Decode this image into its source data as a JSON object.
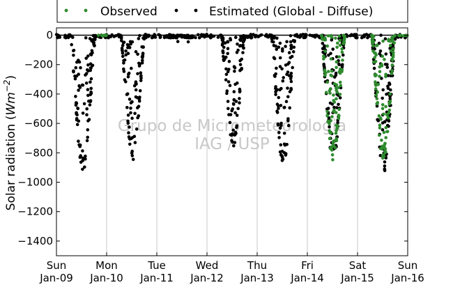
{
  "chart_data": {
    "type": "scatter",
    "title": "",
    "xlabel": "",
    "ylabel": "Solar radiation (Wm^-2)",
    "ylabel_parts": {
      "text": "Solar radiation (",
      "unit_base": "Wm",
      "unit_exp": "−2",
      "close": ")"
    },
    "ylim": [
      -1500,
      50
    ],
    "yticks": [
      0,
      -200,
      -400,
      -600,
      -800,
      -1000,
      -1200,
      -1400
    ],
    "xlim": [
      "2016-01-09",
      "2016-01-16"
    ],
    "xticks": [
      {
        "day": "Sun",
        "date": "Jan-09"
      },
      {
        "day": "Mon",
        "date": "Jan-10"
      },
      {
        "day": "Tue",
        "date": "Jan-11"
      },
      {
        "day": "Wed",
        "date": "Jan-12"
      },
      {
        "day": "Thu",
        "date": "Jan-13"
      },
      {
        "day": "Fri",
        "date": "Jan-14"
      },
      {
        "day": "Sat",
        "date": "Jan-15"
      },
      {
        "day": "Sun",
        "date": "Jan-16"
      }
    ],
    "grid": "vertical",
    "legend": "top",
    "watermark": [
      "Grupo de Micrometeorologia",
      "IAG / USP"
    ],
    "series": [
      {
        "name": "Observed",
        "color": "#2e8b2e",
        "days": [
          {
            "start": 5.28,
            "end": 5.75,
            "peak": 850
          },
          {
            "start": 6.28,
            "end": 6.75,
            "peak": 850
          }
        ],
        "night_ranges": [
          [
            0.83,
            1.0
          ],
          [
            6.8,
            7.0
          ]
        ]
      },
      {
        "name": "Estimated (Global - Diffuse)",
        "color": "#000000",
        "days": [
          {
            "start": 0.28,
            "end": 0.78,
            "peak": 930
          },
          {
            "start": 1.28,
            "end": 1.76,
            "peak": 850
          },
          {
            "start": 2.28,
            "end": 2.75,
            "peak": 90,
            "mostly_clear": true
          },
          {
            "start": 3.28,
            "end": 3.76,
            "peak": 760
          },
          {
            "start": 4.28,
            "end": 4.76,
            "peak": 880
          },
          {
            "start": 5.28,
            "end": 5.75,
            "peak": 860
          },
          {
            "start": 6.28,
            "end": 6.76,
            "peak": 940
          }
        ]
      }
    ]
  }
}
